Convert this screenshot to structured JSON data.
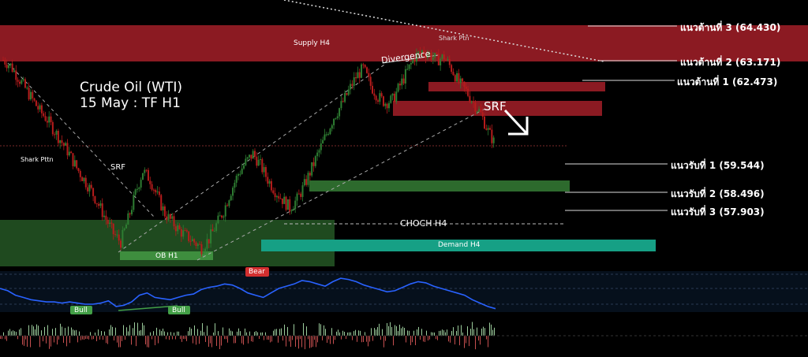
{
  "title": {
    "line1": "Crude Oil (WTI)",
    "line2": "15 May : TF H1"
  },
  "levels": [
    {
      "id": "r3",
      "label": "แนวต้านที่ 3 (64.430)"
    },
    {
      "id": "r2",
      "label": "แนวต้านที่ 2 (63.171)"
    },
    {
      "id": "r1",
      "label": "แนวต้านที่ 1 (62.473)"
    },
    {
      "id": "s1",
      "label": "แนวรับที่ 1 (59.544)"
    },
    {
      "id": "s2",
      "label": "แนวรับที่ 2  (58.496)"
    },
    {
      "id": "s3",
      "label": "แนวรับที่ 3  (57.903)"
    }
  ],
  "zones": {
    "supply": "Supply H4",
    "demand": "Demand H4",
    "ob": "OB H1",
    "choch": "CHOCH H4"
  },
  "annotations": {
    "divergence": "Divergence",
    "srf_main": "SRF",
    "srf_left": "SRF",
    "shark_left": "Shark Pttn",
    "shark_top": "Shark Ptn",
    "bear": "Bear",
    "bull1": "Bull",
    "bull2": "Bull"
  },
  "colors": {
    "supply": "#8b1a22",
    "demand": "#16a085",
    "demand_light": "#2d6a2d",
    "ob": "#3e8e3e",
    "candle_up": "#2e7d32",
    "candle_down": "#b71c1c",
    "rsi_line": "#2962ff",
    "bear_tag": "#d32f2f",
    "bull_tag": "#43a047"
  },
  "chart_data": {
    "type": "candlestick",
    "instrument": "Crude Oil (WTI)",
    "timeframe": "H1",
    "levels": {
      "resistance_3": 64.43,
      "resistance_2": 63.171,
      "resistance_1": 62.473,
      "support_1": 59.544,
      "support_2": 58.496,
      "support_3": 57.903
    },
    "price_path": [
      63.2,
      63.0,
      62.6,
      62.2,
      61.8,
      61.4,
      61.1,
      60.7,
      60.3,
      59.9,
      59.4,
      59.0,
      58.6,
      58.1,
      57.6,
      57.1,
      56.8,
      57.6,
      58.5,
      59.3,
      59.0,
      58.4,
      57.8,
      57.5,
      57.2,
      57.0,
      56.8,
      56.6,
      56.9,
      57.4,
      57.9,
      58.6,
      59.2,
      59.6,
      59.9,
      59.5,
      59.0,
      58.6,
      58.3,
      58.0,
      58.3,
      58.8,
      59.4,
      60.0,
      60.6,
      61.2,
      61.6,
      62.1,
      62.6,
      62.9,
      62.3,
      61.9,
      61.7,
      61.8,
      62.3,
      62.8,
      63.3,
      63.5,
      63.4,
      63.2,
      63.3,
      62.9,
      62.4,
      62.1,
      61.7,
      61.3,
      60.7,
      60.2
    ],
    "rsi_path": [
      46,
      44,
      40,
      38,
      36,
      35,
      34,
      34,
      33,
      34,
      33,
      32,
      32,
      33,
      35,
      30,
      31,
      34,
      40,
      42,
      38,
      37,
      36,
      38,
      40,
      41,
      45,
      47,
      48,
      50,
      49,
      46,
      42,
      40,
      38,
      42,
      46,
      48,
      50,
      53,
      52,
      50,
      48,
      52,
      55,
      54,
      52,
      49,
      47,
      45,
      43,
      44,
      47,
      50,
      52,
      51,
      48,
      46,
      44,
      42,
      40,
      36,
      33,
      30,
      28
    ]
  }
}
